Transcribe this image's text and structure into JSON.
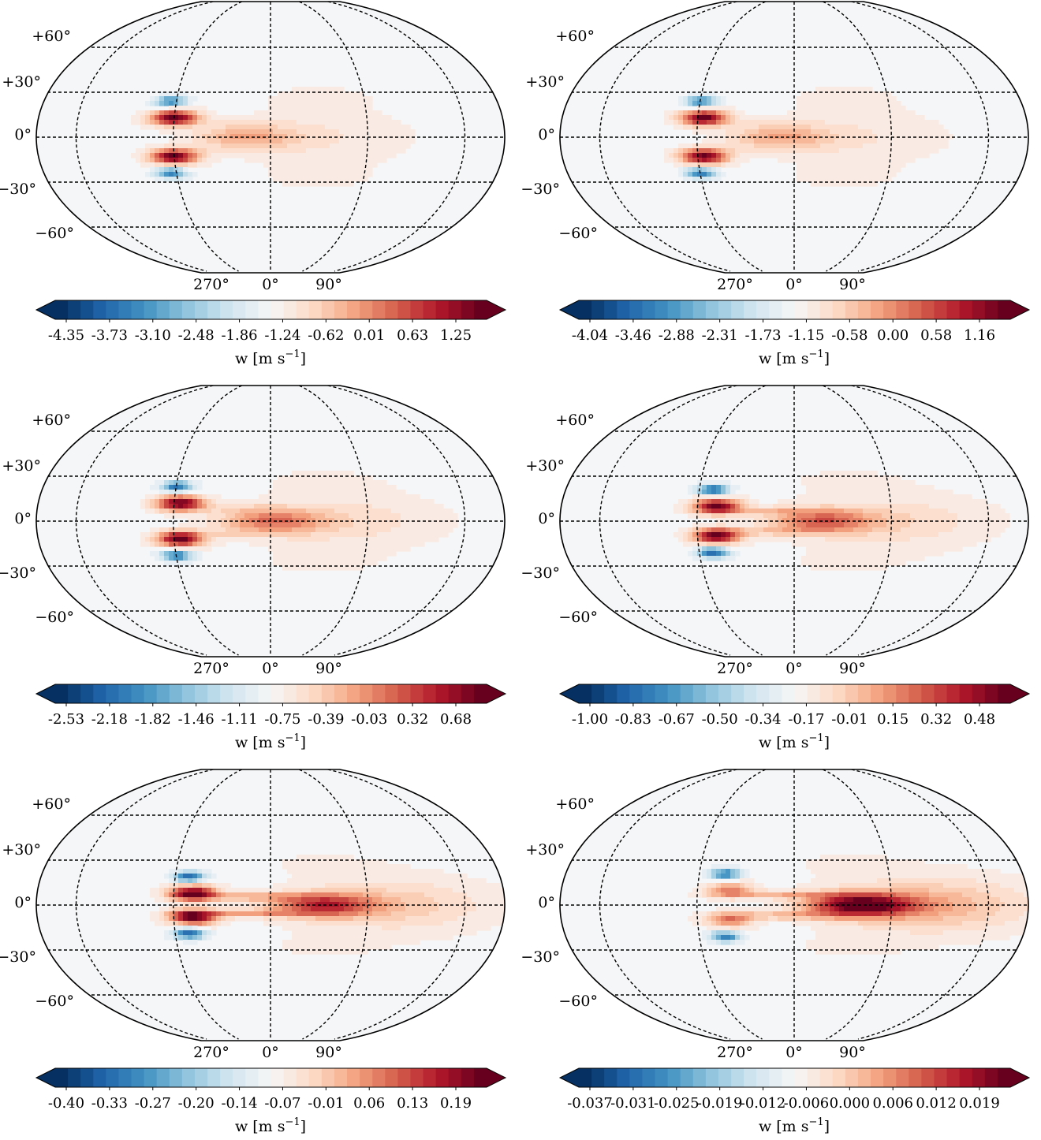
{
  "chart_data": [
    {
      "type": "heatmap",
      "projection": "robinson-like",
      "lat_labels": [
        "+60°",
        "+30°",
        "0°",
        "−30°",
        "−60°"
      ],
      "lon_labels": [
        "270°",
        "0°",
        "90°"
      ],
      "colorbar": {
        "label": "w [m s",
        "label_exp": "−1",
        "label_close": "]",
        "ticks": [
          "-4.35",
          "-3.73",
          "-3.10",
          "-2.48",
          "-1.86",
          "-1.24",
          "-0.62",
          "0.01",
          "0.63",
          "1.25"
        ],
        "vmin": -4.66,
        "vmax": 1.56
      },
      "features": {
        "west_lon": -75,
        "lobe_lat": 13,
        "lobe_amp": 1.0,
        "neg_amp": 0.7,
        "east_amp": 0.35,
        "east_lon": -20,
        "stream": 0.1
      }
    },
    {
      "type": "heatmap",
      "projection": "robinson-like",
      "lat_labels": [
        "+60°",
        "+30°",
        "0°",
        "−30°",
        "−60°"
      ],
      "lon_labels": [
        "270°",
        "0°",
        "90°"
      ],
      "colorbar": {
        "label": "w [m s",
        "label_exp": "−1",
        "label_close": "]",
        "ticks": [
          "-4.04",
          "-3.46",
          "-2.88",
          "-2.31",
          "-1.73",
          "-1.15",
          "-0.58",
          "0.00",
          "0.58",
          "1.16"
        ],
        "vmin": -4.33,
        "vmax": 1.45
      },
      "features": {
        "west_lon": -70,
        "lobe_lat": 13,
        "lobe_amp": 1.0,
        "neg_amp": 0.7,
        "east_amp": 0.35,
        "east_lon": -12,
        "stream": 0.1
      }
    },
    {
      "type": "heatmap",
      "projection": "robinson-like",
      "lat_labels": [
        "+60°",
        "+30°",
        "0°",
        "−30°",
        "−60°"
      ],
      "lon_labels": [
        "270°",
        "0°",
        "90°"
      ],
      "colorbar": {
        "label": "w [m s",
        "label_exp": "−1",
        "label_close": "]",
        "ticks": [
          "-2.53",
          "-2.18",
          "-1.82",
          "-1.46",
          "-1.11",
          "-0.75",
          "-0.39",
          "-0.03",
          "0.32",
          "0.68"
        ],
        "vmin": -2.71,
        "vmax": 0.86
      },
      "features": {
        "west_lon": -70,
        "lobe_lat": 12,
        "lobe_amp": 1.0,
        "neg_amp": 0.75,
        "east_amp": 0.5,
        "east_lon": 0,
        "stream": 0.2
      }
    },
    {
      "type": "heatmap",
      "projection": "robinson-like",
      "lat_labels": [
        "+60°",
        "+30°",
        "0°",
        "−30°",
        "−60°"
      ],
      "lon_labels": [
        "270°",
        "0°",
        "90°"
      ],
      "colorbar": {
        "label": "w [m s",
        "label_exp": "−1",
        "label_close": "]",
        "ticks": [
          "-1.00",
          "-0.83",
          "-0.67",
          "-0.50",
          "-0.34",
          "-0.17",
          "-0.01",
          "0.15",
          "0.32",
          "0.48"
        ],
        "vmin": -1.09,
        "vmax": 0.57
      },
      "features": {
        "west_lon": -60,
        "lobe_lat": 10,
        "lobe_amp": 1.0,
        "neg_amp": 0.8,
        "east_amp": 0.55,
        "east_lon": 20,
        "stream": 0.35
      }
    },
    {
      "type": "heatmap",
      "projection": "robinson-like",
      "lat_labels": [
        "+60°",
        "+30°",
        "0°",
        "−30°",
        "−60°"
      ],
      "lon_labels": [
        "270°",
        "0°",
        "90°"
      ],
      "colorbar": {
        "label": "w [m s",
        "label_exp": "−1",
        "label_close": "]",
        "ticks": [
          "-0.40",
          "-0.33",
          "-0.27",
          "-0.20",
          "-0.14",
          "-0.07",
          "-0.01",
          "0.06",
          "0.13",
          "0.19"
        ],
        "vmin": -0.43,
        "vmax": 0.22
      },
      "features": {
        "west_lon": -60,
        "lobe_lat": 8,
        "lobe_amp": 1.0,
        "neg_amp": 0.8,
        "east_amp": 0.7,
        "east_lon": 40,
        "stream": 0.6
      }
    },
    {
      "type": "heatmap",
      "projection": "robinson-like",
      "lat_labels": [
        "+60°",
        "+30°",
        "0°",
        "−30°",
        "−60°"
      ],
      "lon_labels": [
        "270°",
        "0°",
        "90°"
      ],
      "colorbar": {
        "label": "w [m s",
        "label_exp": "−1",
        "label_close": "]",
        "ticks": [
          "-0.037",
          "-0.031",
          "-0.025",
          "-0.019",
          "-0.012",
          "-0.006",
          "0.000",
          "0.006",
          "0.012",
          "0.019"
        ],
        "vmin": -0.04,
        "vmax": 0.022
      },
      "features": {
        "west_lon": -50,
        "lobe_lat": 10,
        "lobe_amp": 0.5,
        "neg_amp": 0.7,
        "east_amp": 1.0,
        "east_lon": 50,
        "stream": 0.5
      }
    }
  ]
}
